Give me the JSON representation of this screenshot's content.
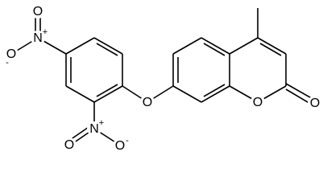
{
  "atoms": [
    {
      "symbol": "N",
      "charge": "+"
    },
    {
      "symbol": "O"
    },
    {
      "symbol": "O",
      "charge": "-"
    },
    {
      "symbol": "N",
      "charge": "+"
    },
    {
      "symbol": "O"
    },
    {
      "symbol": "O",
      "charge": "-"
    },
    {
      "symbol": "O"
    },
    {
      "symbol": "O"
    },
    {
      "symbol": "O"
    }
  ]
}
